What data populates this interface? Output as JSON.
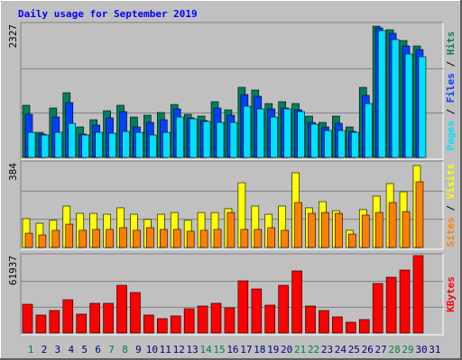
{
  "chart_data": {
    "type": "bar",
    "title": "Daily usage for September 2019",
    "title_color": "#0000ff",
    "categories": [
      "1",
      "2",
      "3",
      "4",
      "5",
      "6",
      "7",
      "8",
      "9",
      "10",
      "11",
      "12",
      "13",
      "14",
      "15",
      "16",
      "17",
      "18",
      "19",
      "20",
      "21",
      "22",
      "23",
      "24",
      "25",
      "26",
      "27",
      "28",
      "29",
      "30",
      "31"
    ],
    "category_colors": [
      "#008040",
      "#000080",
      "#000080",
      "#000080",
      "#000080",
      "#000080",
      "#008040",
      "#008040",
      "#000080",
      "#000080",
      "#000080",
      "#000080",
      "#000080",
      "#008040",
      "#008040",
      "#000080",
      "#000080",
      "#000080",
      "#000080",
      "#000080",
      "#008040",
      "#008040",
      "#000080",
      "#000080",
      "#000080",
      "#000080",
      "#000080",
      "#008040",
      "#008040",
      "#000080",
      "#000080"
    ],
    "grid_divisions": 3,
    "legend_separator": " / ",
    "panels": [
      {
        "ylim": [
          0,
          2327
        ],
        "yticks": [
          2327
        ],
        "series": [
          {
            "name": "Pages",
            "color": "#00e0ff",
            "values": [
              440,
              393,
              440,
              597,
              393,
              440,
              424,
              456,
              440,
              393,
              440,
              707,
              676,
              629,
              613,
              613,
              896,
              849,
              707,
              849,
              802,
              582,
              472,
              472,
              440,
              943,
              2217,
              2060,
              1808,
              1761,
              null
            ]
          },
          {
            "name": "Files",
            "color": "#0040ff",
            "values": [
              755,
              409,
              707,
              959,
              409,
              566,
              692,
              802,
              534,
              613,
              660,
              849,
              692,
              645,
              865,
              739,
              1100,
              1069,
              849,
              865,
              833,
              613,
              534,
              597,
              456,
              1085,
              2264,
              2170,
              1949,
              1886,
              null
            ]
          },
          {
            "name": "Hits",
            "color": "#00805c",
            "values": [
              912,
              440,
              865,
              1132,
              534,
              660,
              817,
              912,
              707,
              739,
              786,
              927,
              755,
              723,
              975,
              833,
              1226,
              1179,
              943,
              975,
              943,
              723,
              613,
              723,
              534,
              1226,
              2295,
              2232,
              2044,
              1949,
              null
            ]
          }
        ]
      },
      {
        "ylim": [
          0,
          384
        ],
        "yticks": [
          384
        ],
        "series": [
          {
            "name": "Sites",
            "color": "#ff8000",
            "values": [
              65,
              57,
              78,
              106,
              78,
              82,
              82,
              90,
              78,
              90,
              82,
              82,
              74,
              78,
              82,
              159,
              82,
              82,
              90,
              78,
              204,
              155,
              159,
              155,
              61,
              147,
              159,
              204,
              163,
              298,
              null
            ]
          },
          {
            "name": "Visits",
            "color": "#ffff00",
            "values": [
              131,
              110,
              123,
              188,
              155,
              155,
              151,
              180,
              151,
              127,
              151,
              159,
              123,
              159,
              159,
              176,
              294,
              188,
              151,
              188,
              339,
              180,
              208,
              167,
              78,
              172,
              233,
              290,
              253,
              372,
              null
            ]
          }
        ]
      },
      {
        "ylim": [
          0,
          61937
        ],
        "yticks": [
          61937
        ],
        "series": [
          {
            "name": "KBytes",
            "color": "#ff0000",
            "values": [
              23046,
              14404,
              18004,
              26648,
              15124,
              23766,
              23766,
              38171,
              32409,
              14404,
              11523,
              13684,
              19445,
              21606,
              23766,
              20166,
              41772,
              35290,
              22326,
              38171,
              49694,
              21606,
              18004,
              12964,
              8642,
              10803,
              39611,
              44653,
              50414,
              61937,
              null
            ]
          }
        ]
      }
    ]
  }
}
